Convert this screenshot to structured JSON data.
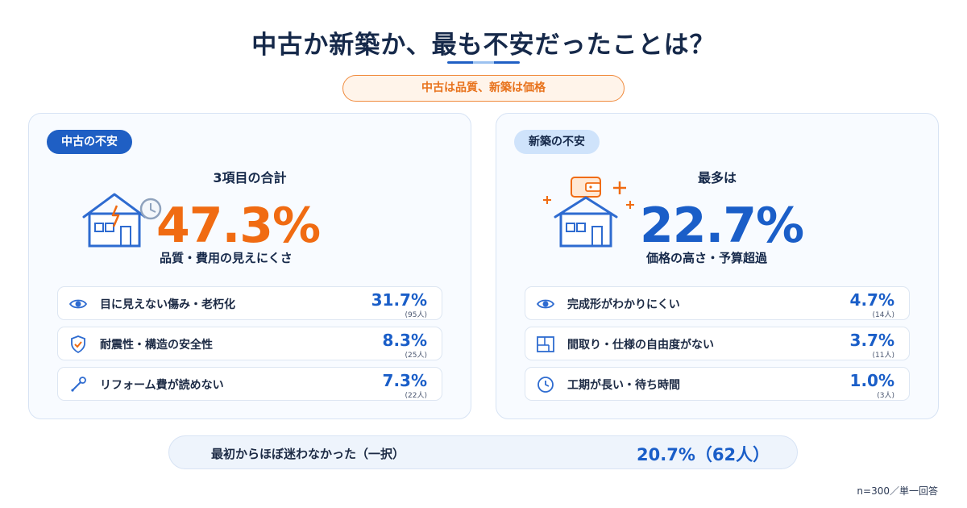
{
  "title": "中古か新築か、最も不安だったことは？",
  "subtitle": "中古は品質、新築は価格",
  "colors": {
    "navy": "#16294a",
    "blue": "#1a5ec8",
    "orange": "#f06b12",
    "light_blue": "#cfe3fb"
  },
  "chart_data": [
    {
      "type": "table",
      "title": "中古の不安",
      "headline": "3項目の合計",
      "total_value": 47.3,
      "total_label": "47.3%",
      "total_caption": "品質・費用の見えにくさ",
      "rows": [
        {
          "icon": "eye-icon",
          "label": "目に見えない傷み・老朽化",
          "value": 31.7,
          "value_label": "31.7%",
          "count": 95,
          "count_label": "(95人)"
        },
        {
          "icon": "shield-check-icon",
          "label": "耐震性・構造の安全性",
          "value": 8.3,
          "value_label": "8.3%",
          "count": 25,
          "count_label": "(25人)"
        },
        {
          "icon": "wrench-icon",
          "label": "リフォーム費が読めない",
          "value": 7.3,
          "value_label": "7.3%",
          "count": 22,
          "count_label": "(22人)"
        }
      ]
    },
    {
      "type": "table",
      "title": "新築の不安",
      "headline": "最多は",
      "total_value": 22.7,
      "total_label": "22.7%",
      "total_caption": "価格の高さ・予算超過",
      "rows": [
        {
          "icon": "eye-icon",
          "label": "完成形がわかりにくい",
          "value": 4.7,
          "value_label": "4.7%",
          "count": 14,
          "count_label": "(14人)"
        },
        {
          "icon": "floor-plan-icon",
          "label": "間取り・仕様の自由度がない",
          "value": 3.7,
          "value_label": "3.7%",
          "count": 11,
          "count_label": "(11人)"
        },
        {
          "icon": "clock-icon",
          "label": "工期が長い・待ち時間",
          "value": 1.0,
          "value_label": "1.0%",
          "count": 3,
          "count_label": "(3人)"
        }
      ]
    }
  ],
  "bottom": {
    "label": "最初からほぼ迷わなかった（一択）",
    "value": 20.7,
    "count": 62,
    "value_label": "20.7%（62人）"
  },
  "footnote": "n=300／単一回答"
}
